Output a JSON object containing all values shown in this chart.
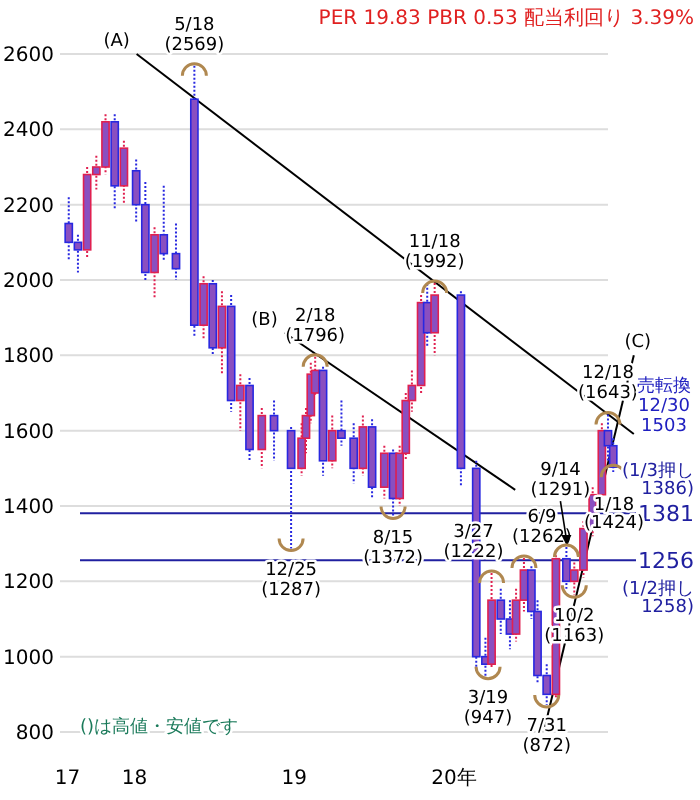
{
  "chart_data": {
    "type": "candlestick",
    "title": "PER 19.83 PBR 0.53 配当利回り 3.39%",
    "x": [
      "2017-08-04",
      "2017-08-25",
      "2017-09-15",
      "2017-10-06",
      "2017-10-27",
      "2017-11-17",
      "2017-12-08",
      "2018-01-05",
      "2018-01-26",
      "2018-02-16",
      "2018-03-09",
      "2018-04-06",
      "2018-05-18",
      "2018-06-08",
      "2018-06-29",
      "2018-07-20",
      "2018-08-10",
      "2018-08-31",
      "2018-09-21",
      "2018-10-19",
      "2018-11-16",
      "2018-12-25",
      "2019-01-18",
      "2019-01-28",
      "2019-02-08",
      "2019-02-18",
      "2019-03-08",
      "2019-03-29",
      "2019-04-19",
      "2019-05-17",
      "2019-06-07",
      "2019-06-28",
      "2019-07-26",
      "2019-08-15",
      "2019-08-30",
      "2019-09-13",
      "2019-09-27",
      "2019-10-18",
      "2019-11-01",
      "2019-11-18",
      "2020-01-17",
      "2020-02-21",
      "2020-03-13",
      "2020-03-27",
      "2020-04-17",
      "2020-05-08",
      "2020-05-22",
      "2020-06-09",
      "2020-06-26",
      "2020-07-10",
      "2020-07-31",
      "2020-08-21",
      "2020-09-14",
      "2020-10-02",
      "2020-10-23",
      "2020-11-13",
      "2020-12-04",
      "2020-12-18",
      "2020-12-30"
    ],
    "ohlc": [
      [
        2150,
        2220,
        2050,
        2100
      ],
      [
        2100,
        2120,
        2020,
        2080
      ],
      [
        2080,
        2300,
        2060,
        2280
      ],
      [
        2280,
        2330,
        2240,
        2300
      ],
      [
        2300,
        2440,
        2280,
        2420
      ],
      [
        2420,
        2440,
        2190,
        2250
      ],
      [
        2250,
        2370,
        2200,
        2350
      ],
      [
        2290,
        2320,
        2150,
        2200
      ],
      [
        2200,
        2260,
        2000,
        2020
      ],
      [
        2020,
        2140,
        1950,
        2120
      ],
      [
        2120,
        2250,
        2050,
        2070
      ],
      [
        2070,
        2150,
        2000,
        2030
      ],
      [
        2480,
        2569,
        1850,
        1880
      ],
      [
        1880,
        2010,
        1840,
        1990
      ],
      [
        1990,
        2000,
        1800,
        1820
      ],
      [
        1820,
        1970,
        1750,
        1930
      ],
      [
        1930,
        1960,
        1650,
        1680
      ],
      [
        1680,
        1750,
        1600,
        1720
      ],
      [
        1720,
        1740,
        1520,
        1550
      ],
      [
        1550,
        1660,
        1500,
        1640
      ],
      [
        1640,
        1680,
        1520,
        1600
      ],
      [
        1600,
        1610,
        1287,
        1500
      ],
      [
        1500,
        1620,
        1480,
        1580
      ],
      [
        1580,
        1660,
        1540,
        1640
      ],
      [
        1640,
        1780,
        1620,
        1750
      ],
      [
        1700,
        1796,
        1690,
        1760
      ],
      [
        1760,
        1770,
        1480,
        1520
      ],
      [
        1520,
        1640,
        1500,
        1600
      ],
      [
        1600,
        1680,
        1560,
        1580
      ],
      [
        1580,
        1620,
        1460,
        1500
      ],
      [
        1500,
        1640,
        1480,
        1610
      ],
      [
        1610,
        1630,
        1420,
        1450
      ],
      [
        1450,
        1560,
        1420,
        1540
      ],
      [
        1540,
        1550,
        1372,
        1420
      ],
      [
        1420,
        1560,
        1400,
        1540
      ],
      [
        1540,
        1700,
        1520,
        1680
      ],
      [
        1680,
        1760,
        1650,
        1720
      ],
      [
        1720,
        1960,
        1700,
        1940
      ],
      [
        1940,
        1990,
        1820,
        1860
      ],
      [
        1860,
        1992,
        1800,
        1960
      ],
      [
        1960,
        1970,
        1450,
        1500
      ],
      [
        1500,
        1520,
        960,
        1000
      ],
      [
        1000,
        1050,
        947,
        980
      ],
      [
        980,
        1222,
        970,
        1150
      ],
      [
        1150,
        1180,
        1060,
        1100
      ],
      [
        1100,
        1150,
        1020,
        1060
      ],
      [
        1060,
        1180,
        1040,
        1150
      ],
      [
        1150,
        1262,
        1120,
        1230
      ],
      [
        1230,
        1240,
        1100,
        1120
      ],
      [
        1120,
        1150,
        930,
        950
      ],
      [
        950,
        980,
        872,
        900
      ],
      [
        900,
        1280,
        890,
        1260
      ],
      [
        1260,
        1291,
        1180,
        1200
      ],
      [
        1200,
        1250,
        1163,
        1230
      ],
      [
        1230,
        1360,
        1210,
        1340
      ],
      [
        1340,
        1450,
        1320,
        1430
      ],
      [
        1430,
        1620,
        1420,
        1600
      ],
      [
        1600,
        1643,
        1520,
        1560
      ],
      [
        1560,
        1580,
        1490,
        1503
      ]
    ],
    "color": "#8a4fc0",
    "series": [
      {
        "type": "line",
        "name": "(A)",
        "color": "#000000",
        "x": [
          "2018-01-06",
          "2021-02-15"
        ],
        "values": [
          2600,
          1591
        ]
      },
      {
        "type": "line",
        "name": "(B)",
        "color": "#000000",
        "x": [
          "2018-12-10",
          "2020-05-20"
        ],
        "values": [
          1860,
          1443
        ]
      },
      {
        "type": "line",
        "name": "(C)",
        "color": "#000000",
        "x": [
          "2020-07-24",
          "2021-02-15"
        ],
        "values": [
          800,
          1800
        ]
      }
    ],
    "xlim": [
      "2017-07-15",
      "2021-02-20"
    ],
    "xticks": [
      {
        "value": "2017-08-01",
        "label": "17"
      },
      {
        "value": "2018-01-01",
        "label": "18"
      },
      {
        "value": "2019-01-01",
        "label": "19"
      },
      {
        "value": "2020-01-01",
        "label": "20年"
      }
    ],
    "ylim": [
      800,
      2600
    ],
    "yticks": [
      800,
      1000,
      1200,
      1400,
      1600,
      1800,
      2000,
      2200,
      2400,
      2600
    ],
    "grid": "y",
    "ref_lines": [
      {
        "axis": "y",
        "value": 1381,
        "label": "1381",
        "color": "#2020a0"
      },
      {
        "axis": "y",
        "value": 1256,
        "label": "1256",
        "color": "#2020a0"
      }
    ],
    "annotations": [
      {
        "text": "5/18 (2569)",
        "x": "2018-05-18",
        "y": 2569
      },
      {
        "text": "12/25 (1287)",
        "x": "2018-12-25",
        "y": 1287
      },
      {
        "text": "2/18 (1796)",
        "x": "2019-02-18",
        "y": 1796
      },
      {
        "text": "8/15 (1372)",
        "x": "2019-08-15",
        "y": 1372
      },
      {
        "text": "11/18 (1992)",
        "x": "2019-11-18",
        "y": 1992
      },
      {
        "text": "3/19 (947)",
        "x": "2020-03-19",
        "y": 947
      },
      {
        "text": "3/27 (1222)",
        "x": "2020-03-27",
        "y": 1222
      },
      {
        "text": "6/9 (1262)",
        "x": "2020-06-09",
        "y": 1262
      },
      {
        "text": "7/31 (872)",
        "x": "2020-07-31",
        "y": 872
      },
      {
        "text": "9/14 (1291)",
        "x": "2020-09-14",
        "y": 1291
      },
      {
        "text": "10/2 (1163)",
        "x": "2020-10-02",
        "y": 1163
      },
      {
        "text": "12/18 (1643)",
        "x": "2020-12-18",
        "y": 1643
      },
      {
        "text": "売転換 12/30 1503",
        "x": "2020-12-30",
        "y": 1503
      },
      "()は高値・安値です",
      "(1/3押し 1386)",
      "(1/2押し 1258)",
      "1/18 (1424)"
    ]
  }
}
